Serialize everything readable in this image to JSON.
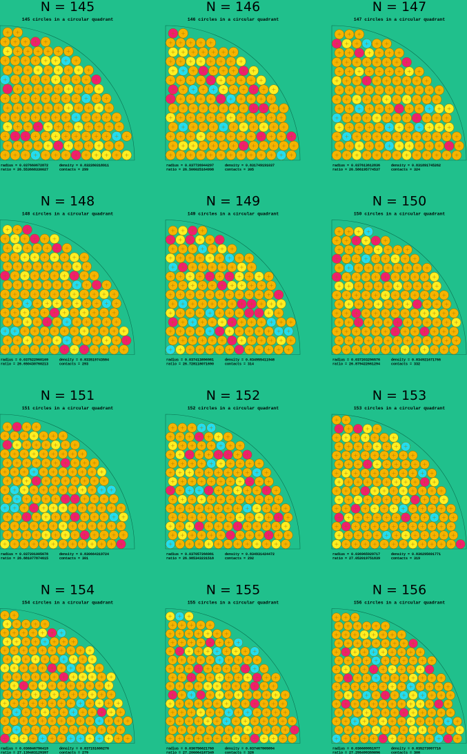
{
  "panels": [
    {
      "title": "N = 145",
      "subtitle": "145 circles in a circular quadrant",
      "radius": "radius =  0.037660672872",
      "density": "density = 0.832280318911",
      "ratio": "ratio  =  26.553668330027",
      "contacts": "contacts = 299"
    },
    {
      "title": "N = 146",
      "subtitle": "146 circles in a circular quadrant",
      "radius": "radius =  0.037726944297",
      "density": "density = 0.831749191037",
      "ratio": "ratio  =  26.506025164998",
      "contacts": "contacts = 305"
    },
    {
      "title": "N = 147",
      "subtitle": "147 circles in a circular quadrant",
      "radius": "radius =  0.037613612836",
      "density": "density = 0.831891745262",
      "ratio": "ratio  =  26.586195774537",
      "contacts": "contacts = 324"
    },
    {
      "title": "N = 148",
      "subtitle": "148 circles in a circular quadrant",
      "radius": "radius =  0.037522960169",
      "density": "density = 0.833519743584",
      "ratio": "ratio  =  26.650430760213",
      "contacts": "contacts = 293"
    },
    {
      "title": "N = 149",
      "subtitle": "149 circles in a circular quadrant",
      "radius": "radius =  0.037413896981",
      "density": "density = 0.834955411948",
      "ratio": "ratio  =  26.728118071690",
      "contacts": "contacts = 314"
    },
    {
      "title": "N = 150",
      "subtitle": "150 circles in a circular quadrant",
      "radius": "radius =  0.037203296576",
      "density": "density = 0.834921671766",
      "ratio": "ratio  =  26.879422661294",
      "contacts": "contacts = 332"
    },
    {
      "title": "N = 151",
      "subtitle": "151 circles in a circular quadrant",
      "radius": "radius =  0.037201005678",
      "density": "density = 0.830664319724",
      "ratio": "ratio  =  26.881077874615",
      "contacts": "contacts = 301"
    },
    {
      "title": "N = 152",
      "subtitle": "152 circles in a circular quadrant",
      "radius": "radius =  0.037057266981",
      "density": "density = 0.834931424472",
      "ratio": "ratio  =  26.985343231518",
      "contacts": "contacts = 292"
    },
    {
      "title": "N = 153",
      "subtitle": "153 circles in a circular quadrant",
      "radius": "radius =  0.036965929717",
      "density": "density = 0.836295691771",
      "ratio": "ratio  =  27.052019751839",
      "contacts": "contacts = 319"
    },
    {
      "title": "N = 154",
      "subtitle": "154 circles in a circular quadrant",
      "radius": "radius =  0.036846796419",
      "density": "density = 0.837151686276",
      "ratio": "ratio  =  27.139483129397",
      "contacts": "contacts = 279"
    },
    {
      "title": "N = 155",
      "subtitle": "155 circles in a circular quadrant",
      "radius": "radius =  0.036756621760",
      "density": "density = 0.837467865894",
      "ratio": "ratio  =  27.206064187349",
      "contacts": "contacts = 328"
    },
    {
      "title": "N = 156",
      "subtitle": "156 circles in a circular quadrant",
      "radius": "radius =  0.036689951977",
      "density": "density = 0.835273997716",
      "ratio": "ratio  =  27.255499359896",
      "contacts": "contacts = 308"
    }
  ]
}
